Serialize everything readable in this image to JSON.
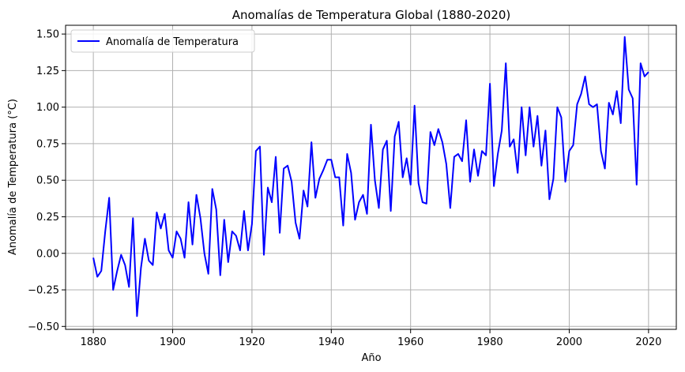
{
  "chart_data": {
    "type": "line",
    "title": "Anomalías de Temperatura Global (1880-2020)",
    "xlabel": "Año",
    "ylabel": "Anomalía de Temperatura (°C)",
    "xlim": [
      1873,
      2027
    ],
    "ylim": [
      -0.52,
      1.56
    ],
    "xticks": [
      1880,
      1900,
      1920,
      1940,
      1960,
      1980,
      2000,
      2020
    ],
    "xtick_labels": [
      "1880",
      "1900",
      "1920",
      "1940",
      "1960",
      "1980",
      "2000",
      "2020"
    ],
    "yticks": [
      -0.5,
      -0.25,
      0.0,
      0.25,
      0.5,
      0.75,
      1.0,
      1.25,
      1.5
    ],
    "ytick_labels": [
      "−0.50",
      "−0.25",
      "0.00",
      "0.25",
      "0.50",
      "0.75",
      "1.00",
      "1.25",
      "1.50"
    ],
    "grid": true,
    "legend_position": "top-left",
    "series": [
      {
        "name": "Anomalía de Temperatura",
        "color": "#0000ff",
        "x": [
          1880,
          1881,
          1882,
          1883,
          1884,
          1885,
          1886,
          1887,
          1888,
          1889,
          1890,
          1891,
          1892,
          1893,
          1894,
          1895,
          1896,
          1897,
          1898,
          1899,
          1900,
          1901,
          1902,
          1903,
          1904,
          1905,
          1906,
          1907,
          1908,
          1909,
          1910,
          1911,
          1912,
          1913,
          1914,
          1915,
          1916,
          1917,
          1918,
          1919,
          1920,
          1921,
          1922,
          1923,
          1924,
          1925,
          1926,
          1927,
          1928,
          1929,
          1930,
          1931,
          1932,
          1933,
          1934,
          1935,
          1936,
          1937,
          1938,
          1939,
          1940,
          1941,
          1942,
          1943,
          1944,
          1945,
          1946,
          1947,
          1948,
          1949,
          1950,
          1951,
          1952,
          1953,
          1954,
          1955,
          1956,
          1957,
          1958,
          1959,
          1960,
          1961,
          1962,
          1963,
          1964,
          1965,
          1966,
          1967,
          1968,
          1969,
          1970,
          1971,
          1972,
          1973,
          1974,
          1975,
          1976,
          1977,
          1978,
          1979,
          1980,
          1981,
          1982,
          1983,
          1984,
          1985,
          1986,
          1987,
          1988,
          1989,
          1990,
          1991,
          1992,
          1993,
          1994,
          1995,
          1996,
          1997,
          1998,
          1999,
          2000,
          2001,
          2002,
          2003,
          2004,
          2005,
          2006,
          2007,
          2008,
          2009,
          2010,
          2011,
          2012,
          2013,
          2014,
          2015,
          2016,
          2017,
          2018,
          2019,
          2020
        ],
        "y": [
          -0.03,
          -0.16,
          -0.12,
          0.15,
          0.38,
          -0.25,
          -0.12,
          -0.01,
          -0.08,
          -0.23,
          0.24,
          -0.43,
          -0.1,
          0.1,
          -0.05,
          -0.08,
          0.28,
          0.17,
          0.27,
          0.02,
          -0.03,
          0.15,
          0.1,
          -0.03,
          0.35,
          0.06,
          0.4,
          0.24,
          0.0,
          -0.14,
          0.44,
          0.3,
          -0.15,
          0.23,
          -0.06,
          0.15,
          0.12,
          0.02,
          0.29,
          0.02,
          0.2,
          0.7,
          0.73,
          -0.01,
          0.45,
          0.35,
          0.66,
          0.14,
          0.58,
          0.6,
          0.49,
          0.21,
          0.1,
          0.43,
          0.32,
          0.76,
          0.38,
          0.51,
          0.57,
          0.64,
          0.64,
          0.52,
          0.52,
          0.19,
          0.68,
          0.55,
          0.23,
          0.35,
          0.4,
          0.27,
          0.88,
          0.5,
          0.31,
          0.71,
          0.77,
          0.29,
          0.8,
          0.9,
          0.52,
          0.65,
          0.47,
          1.01,
          0.48,
          0.35,
          0.34,
          0.83,
          0.74,
          0.85,
          0.76,
          0.61,
          0.31,
          0.66,
          0.68,
          0.63,
          0.91,
          0.49,
          0.71,
          0.53,
          0.7,
          0.67,
          1.16,
          0.46,
          0.68,
          0.84,
          1.3,
          0.73,
          0.78,
          0.55,
          1.0,
          0.67,
          1.0,
          0.73,
          0.94,
          0.6,
          0.84,
          0.37,
          0.51,
          1.0,
          0.93,
          0.49,
          0.7,
          0.74,
          1.02,
          1.09,
          1.21,
          1.02,
          1.0,
          1.02,
          0.7,
          0.58,
          1.03,
          0.95,
          1.11,
          0.89,
          1.48,
          1.12,
          1.06,
          0.47,
          1.3,
          1.21,
          1.24
        ]
      }
    ]
  }
}
